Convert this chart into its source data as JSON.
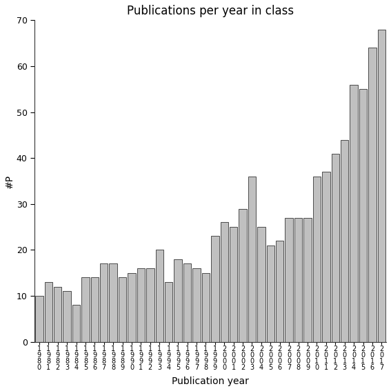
{
  "title": "Publications per year in class",
  "xlabel": "Publication year",
  "ylabel": "#P",
  "years": [
    1980,
    1981,
    1982,
    1983,
    1984,
    1985,
    1986,
    1987,
    1988,
    1989,
    1990,
    1991,
    1992,
    1993,
    1994,
    1995,
    1996,
    1997,
    1998,
    1999,
    2000,
    2001,
    2002,
    2003,
    2004,
    2005,
    2006,
    2007,
    2008,
    2009,
    2010,
    2011,
    2012,
    2013,
    2014,
    2015,
    2016,
    2017
  ],
  "values": [
    10,
    13,
    12,
    11,
    8,
    14,
    14,
    17,
    17,
    14,
    15,
    16,
    16,
    20,
    13,
    18,
    17,
    16,
    15,
    23,
    26,
    25,
    29,
    36,
    25,
    21,
    22,
    27,
    27,
    27,
    36,
    37,
    41,
    44,
    56,
    55,
    64,
    68
  ],
  "bar_color": "#c0c0c0",
  "bar_edge_color": "#333333",
  "ylim": [
    0,
    70
  ],
  "yticks": [
    0,
    10,
    20,
    30,
    40,
    50,
    60,
    70
  ],
  "bg_color": "#ffffff",
  "title_fontsize": 12,
  "label_fontsize": 10,
  "ylabel_fontsize": 10,
  "tick_fontsize": 9,
  "xticklabel_fontsize": 7
}
